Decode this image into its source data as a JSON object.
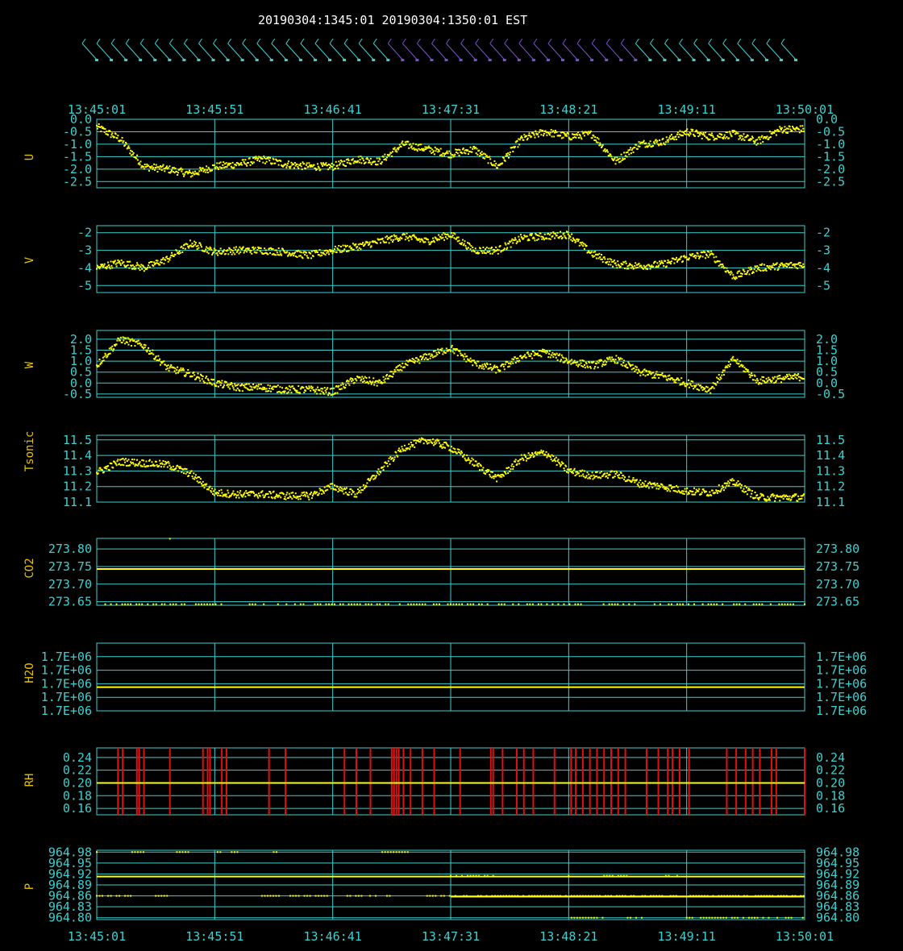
{
  "header": {
    "title": "20190304:1345:01 20190304:1350:01 EST"
  },
  "colors": {
    "background": "#000000",
    "grid": "#3fd0d0",
    "tick_text": "#3fd0d0",
    "data": "#ffff00",
    "panel_label": "#e8c200",
    "rh_spikes": "#dd1111",
    "wind_barb": "#3fd0d0",
    "wind_barb_alt": "#7b52c8"
  },
  "time_axis": {
    "labels": [
      "13:45:01",
      "13:45:51",
      "13:46:41",
      "13:47:31",
      "13:48:21",
      "13:49:11",
      "13:50:01"
    ],
    "start_seconds": 0,
    "end_seconds": 300
  },
  "wind_barbs": {
    "count": 49,
    "alt_color_indices": [
      21,
      22,
      23,
      24,
      25,
      26,
      27,
      28,
      29,
      30,
      31,
      32,
      33,
      34,
      35,
      36,
      37
    ]
  },
  "chart_data": [
    {
      "type": "scatter",
      "ylabel": "U",
      "ylim": [
        -2.75,
        0.0
      ],
      "yticks": [
        "0.0",
        "-0.5",
        "-1.0",
        "-1.5",
        "-2.0",
        "-2.5"
      ],
      "ytick_values": [
        0.0,
        -0.5,
        -1.0,
        -1.5,
        -2.0,
        -2.5
      ],
      "grid": true,
      "x": [
        0,
        10,
        20,
        30,
        40,
        50,
        60,
        70,
        80,
        90,
        100,
        110,
        120,
        130,
        140,
        150,
        160,
        170,
        180,
        190,
        200,
        210,
        220,
        230,
        240,
        250,
        260,
        270,
        280,
        290,
        300
      ],
      "values": [
        -0.3,
        -0.8,
        -1.9,
        -2.0,
        -2.2,
        -1.9,
        -1.8,
        -1.6,
        -1.8,
        -1.9,
        -1.9,
        -1.6,
        -1.7,
        -1.0,
        -1.2,
        -1.4,
        -1.2,
        -1.9,
        -0.8,
        -0.5,
        -0.7,
        -0.6,
        -1.7,
        -1.0,
        -0.9,
        -0.5,
        -0.7,
        -0.6,
        -0.9,
        -0.4,
        -0.4
      ]
    },
    {
      "type": "scatter",
      "ylabel": "V",
      "ylim": [
        -5.4,
        -1.6
      ],
      "yticks": [
        "-2",
        "-3",
        "-4",
        "-5"
      ],
      "ytick_values": [
        -2,
        -3,
        -4,
        -5
      ],
      "grid": true,
      "x": [
        0,
        10,
        20,
        30,
        40,
        50,
        60,
        70,
        80,
        90,
        100,
        110,
        120,
        130,
        140,
        150,
        160,
        170,
        180,
        190,
        200,
        210,
        220,
        230,
        240,
        250,
        260,
        270,
        280,
        290,
        300
      ],
      "values": [
        -4.0,
        -3.7,
        -4.0,
        -3.5,
        -2.6,
        -3.1,
        -3.0,
        -3.0,
        -3.1,
        -3.3,
        -3.0,
        -2.8,
        -2.5,
        -2.2,
        -2.5,
        -2.1,
        -3.0,
        -3.0,
        -2.3,
        -2.2,
        -2.1,
        -3.2,
        -3.8,
        -3.9,
        -3.8,
        -3.4,
        -3.2,
        -4.5,
        -4.0,
        -3.9,
        -3.8
      ]
    },
    {
      "type": "scatter",
      "ylabel": "W",
      "ylim": [
        -0.65,
        2.4
      ],
      "yticks": [
        "2.0",
        "1.5",
        "1.0",
        "0.5",
        "0.0",
        "-0.5"
      ],
      "ytick_values": [
        2.0,
        1.5,
        1.0,
        0.5,
        0.0,
        -0.5
      ],
      "grid": true,
      "x": [
        0,
        10,
        20,
        30,
        40,
        50,
        60,
        70,
        80,
        90,
        100,
        110,
        120,
        130,
        140,
        150,
        160,
        170,
        180,
        190,
        200,
        210,
        220,
        230,
        240,
        250,
        260,
        270,
        280,
        290,
        300
      ],
      "values": [
        0.8,
        2.0,
        1.7,
        0.7,
        0.4,
        0.0,
        -0.2,
        -0.2,
        -0.3,
        -0.3,
        -0.4,
        0.2,
        0.0,
        0.8,
        1.2,
        1.6,
        0.9,
        0.6,
        1.2,
        1.4,
        1.0,
        0.8,
        1.1,
        0.5,
        0.3,
        0.0,
        -0.3,
        1.1,
        0.1,
        0.2,
        0.3
      ]
    },
    {
      "type": "scatter",
      "ylabel": "Tsonic",
      "ylim": [
        11.1,
        11.53
      ],
      "yticks": [
        "11.5",
        "11.4",
        "11.3",
        "11.2",
        "11.1"
      ],
      "ytick_values": [
        11.5,
        11.4,
        11.3,
        11.2,
        11.1
      ],
      "grid": true,
      "x": [
        0,
        10,
        20,
        30,
        40,
        50,
        60,
        70,
        80,
        90,
        100,
        110,
        120,
        130,
        140,
        150,
        160,
        170,
        180,
        190,
        200,
        210,
        220,
        230,
        240,
        250,
        260,
        270,
        280,
        290,
        300
      ],
      "values": [
        11.29,
        11.36,
        11.35,
        11.34,
        11.28,
        11.16,
        11.15,
        11.15,
        11.14,
        11.14,
        11.2,
        11.15,
        11.3,
        11.45,
        11.5,
        11.45,
        11.35,
        11.25,
        11.38,
        11.42,
        11.3,
        11.27,
        11.28,
        11.22,
        11.2,
        11.17,
        11.16,
        11.23,
        11.13,
        11.13,
        11.13
      ]
    },
    {
      "type": "scatter",
      "ylabel": "CO2",
      "ylim": [
        273.64,
        273.83
      ],
      "yticks": [
        "273.80",
        "273.75",
        "273.70",
        "273.65"
      ],
      "ytick_values": [
        273.8,
        273.75,
        273.7,
        273.65
      ],
      "grid": true,
      "mean_line": 273.743,
      "baseline": 273.643,
      "outliers": [
        [
          31,
          273.829
        ]
      ],
      "x": [
        0,
        300
      ],
      "values": [
        273.743,
        273.743
      ]
    },
    {
      "type": "line",
      "ylabel": "H2O",
      "ylim": [
        0,
        5
      ],
      "yticks": [
        "1.7E+06",
        "1.7E+06",
        "1.7E+06",
        "1.7E+06",
        "1.7E+06"
      ],
      "ytick_values": [
        4,
        3,
        2,
        1,
        0
      ],
      "grid": true,
      "mean_line_level": 1.75,
      "x": [
        0,
        300
      ],
      "values": [
        1.75,
        1.75
      ]
    },
    {
      "type": "scatter",
      "ylabel": "RH",
      "ylim": [
        0.15,
        0.255
      ],
      "yticks": [
        "0.24",
        "0.22",
        "0.20",
        "0.18",
        "0.16"
      ],
      "ytick_values": [
        0.24,
        0.22,
        0.2,
        0.18,
        0.16
      ],
      "grid": true,
      "mean_line": 0.2,
      "spike_times": [
        9,
        11,
        17,
        18,
        20,
        31,
        45,
        47,
        48,
        53,
        55,
        73,
        80,
        105,
        110,
        116,
        125,
        126,
        127,
        128,
        130,
        133,
        138,
        143,
        154,
        167,
        168,
        172,
        178,
        181,
        185,
        194,
        201,
        203,
        206,
        209,
        212,
        215,
        218,
        221,
        224,
        233,
        238,
        242,
        244,
        247,
        251,
        267,
        271,
        275,
        278,
        281,
        286,
        288,
        300
      ]
    },
    {
      "type": "scatter",
      "ylabel": "P",
      "ylim": [
        964.795,
        964.985
      ],
      "yticks": [
        "964.98",
        "964.95",
        "964.92",
        "964.89",
        "964.86",
        "964.83",
        "964.80"
      ],
      "ytick_values": [
        964.98,
        964.95,
        964.92,
        964.89,
        964.86,
        964.83,
        964.8
      ],
      "grid": true,
      "mean_line": 964.913,
      "second_line": 964.858,
      "levels": [
        {
          "value": 964.98,
          "segments": [
            [
              0,
              2
            ],
            [
              15,
              20
            ],
            [
              34,
              40
            ],
            [
              50,
              60
            ],
            [
              75,
              78
            ],
            [
              121,
              132
            ]
          ]
        },
        {
          "value": 964.86,
          "segments": [
            [
              0,
              15
            ],
            [
              25,
              30
            ],
            [
              70,
              100
            ],
            [
              105,
              125
            ],
            [
              140,
              300
            ]
          ]
        },
        {
          "value": 964.915,
          "segments": [
            [
              150,
              170
            ],
            [
              200,
              202
            ],
            [
              215,
              225
            ],
            [
              240,
              250
            ]
          ]
        },
        {
          "value": 964.8,
          "segments": [
            [
              200,
              215
            ],
            [
              225,
              232
            ],
            [
              250,
              300
            ]
          ]
        }
      ]
    }
  ]
}
